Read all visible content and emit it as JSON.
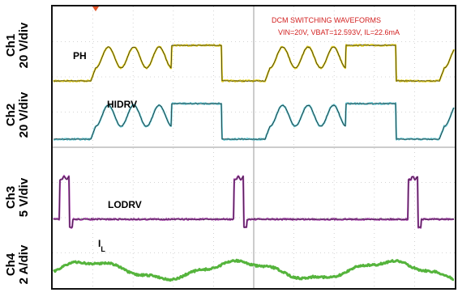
{
  "chart_data": {
    "type": "line",
    "title": "DCM SWITCHING WAVEFORMS",
    "subtitle": "VIN=20V, VBAT=12.593V, IL=22.6mA",
    "title_color": "#d21f1f",
    "grid": true,
    "channels": [
      {
        "id": "Ch1",
        "scale": "20 V/div",
        "trace_label": "PH",
        "color": "#e6d21e"
      },
      {
        "id": "Ch2",
        "scale": "20 V/div",
        "trace_label": "HIDRV",
        "color": "#5ec6d2"
      },
      {
        "id": "Ch3",
        "scale": "5 V/div",
        "trace_label": "LODRV",
        "color": "#a23da8"
      },
      {
        "id": "Ch4",
        "scale": "2 A/div",
        "trace_label": "I",
        "trace_label_sub": "L",
        "color": "#55b43c"
      }
    ]
  }
}
